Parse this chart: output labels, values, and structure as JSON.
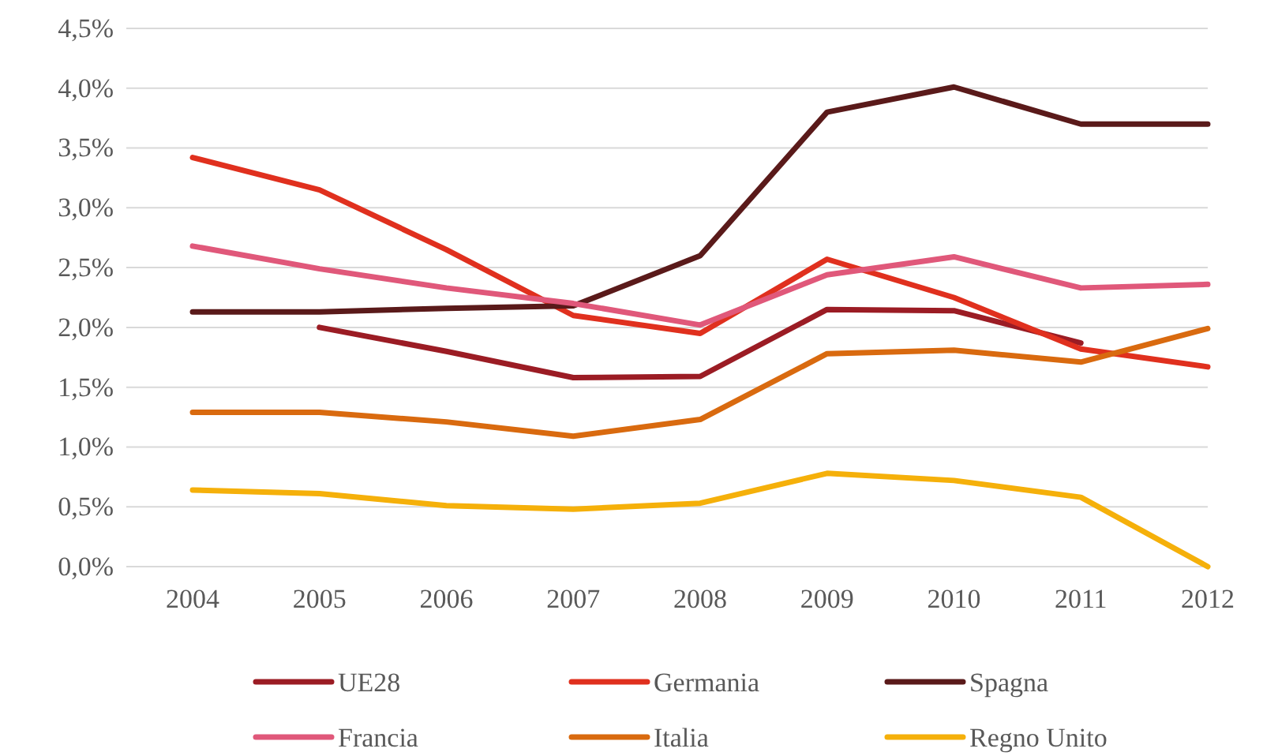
{
  "chart_data": {
    "type": "line",
    "categories": [
      "2004",
      "2005",
      "2006",
      "2007",
      "2008",
      "2009",
      "2010",
      "2011",
      "2012"
    ],
    "ylim": [
      0,
      4.5
    ],
    "yticks": [
      {
        "value": 0,
        "label": "0,0%"
      },
      {
        "value": 0.5,
        "label": "0,5%"
      },
      {
        "value": 1,
        "label": "1,0%"
      },
      {
        "value": 1.5,
        "label": "1,5%"
      },
      {
        "value": 2,
        "label": "2,0%"
      },
      {
        "value": 2.5,
        "label": "2,5%"
      },
      {
        "value": 3,
        "label": "3,0%"
      },
      {
        "value": 3.5,
        "label": "3,5%"
      },
      {
        "value": 4,
        "label": "4,0%"
      },
      {
        "value": 4.5,
        "label": "4,5%"
      }
    ],
    "grid": "y",
    "legend": "bottom",
    "marker": "none",
    "line_style": "solid",
    "series": [
      {
        "name": "UE28",
        "color": "#9b1c24",
        "values": [
          null,
          2.0,
          1.8,
          1.58,
          1.59,
          2.15,
          2.14,
          1.87,
          null
        ]
      },
      {
        "name": "Germania",
        "color": "#e0301e",
        "values": [
          3.42,
          3.15,
          2.65,
          2.1,
          1.95,
          2.57,
          2.25,
          1.82,
          1.67
        ]
      },
      {
        "name": "Spagna",
        "color": "#5a1a1a",
        "values": [
          2.13,
          2.13,
          2.16,
          2.18,
          2.6,
          3.8,
          4.01,
          3.7,
          3.7
        ]
      },
      {
        "name": "Francia",
        "color": "#e0587a",
        "values": [
          2.68,
          2.49,
          2.33,
          2.2,
          2.02,
          2.44,
          2.59,
          2.33,
          2.36
        ]
      },
      {
        "name": "Italia",
        "color": "#d96a0f",
        "values": [
          1.29,
          1.29,
          1.21,
          1.09,
          1.23,
          1.78,
          1.81,
          1.71,
          1.99
        ]
      },
      {
        "name": "Regno Unito",
        "color": "#f5b00a",
        "values": [
          0.64,
          0.61,
          0.51,
          0.48,
          0.53,
          0.78,
          0.72,
          0.58,
          0.0
        ]
      }
    ]
  }
}
